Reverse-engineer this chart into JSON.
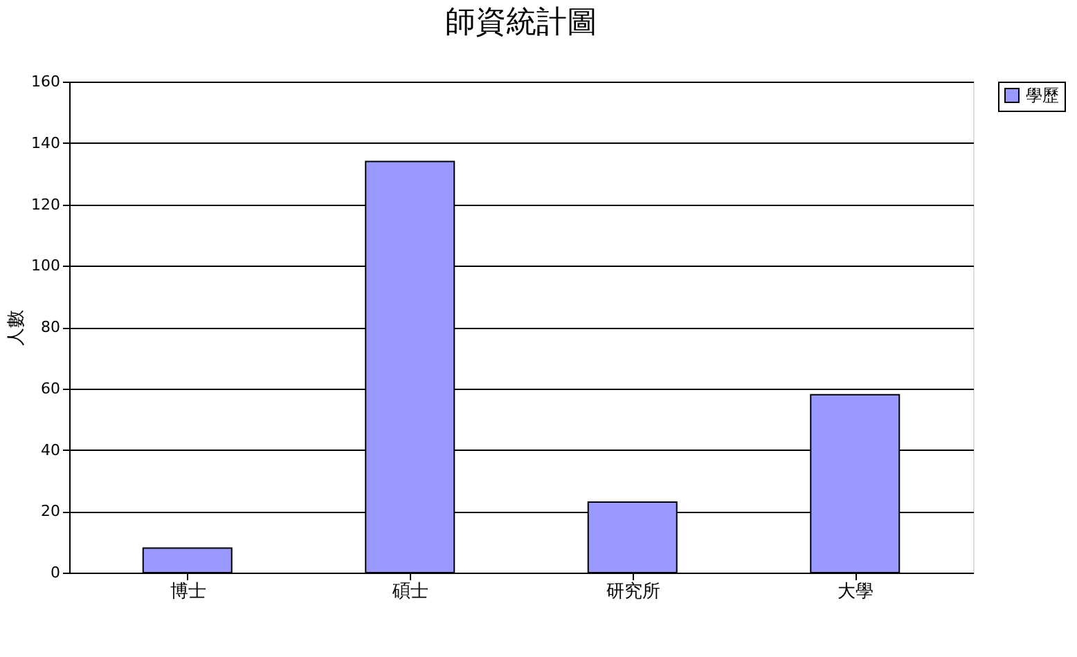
{
  "chart_data": {
    "type": "bar",
    "title": "師資統計圖",
    "ylabel": "人數",
    "categories": [
      "博士",
      "碩士",
      "研究所",
      "大學"
    ],
    "series": [
      {
        "name": "學歷",
        "color": "#9999ff",
        "values": [
          8,
          134,
          23,
          58
        ]
      }
    ],
    "ylim": [
      0,
      160
    ],
    "yticks": [
      0,
      20,
      40,
      60,
      80,
      100,
      120,
      140,
      160
    ],
    "grid": "y",
    "legend": "right"
  }
}
